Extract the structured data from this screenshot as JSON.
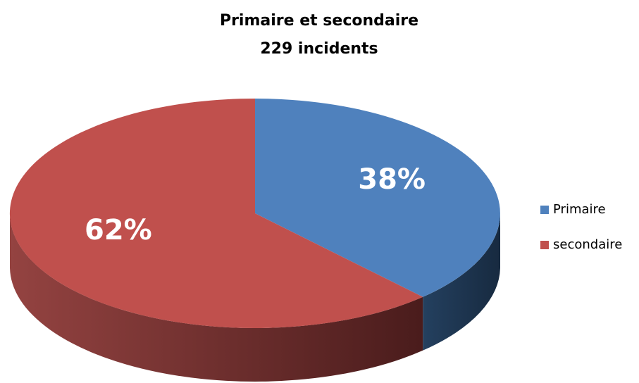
{
  "chart_data": {
    "type": "pie",
    "title": "Primaire et secondaire",
    "subtitle": "229 incidents",
    "categories": [
      "Primaire",
      "secondaire"
    ],
    "values": [
      38,
      62
    ],
    "value_labels": [
      "38%",
      "62%"
    ],
    "colors": [
      "#4f81bd",
      "#c0504d"
    ],
    "legend": "right"
  }
}
